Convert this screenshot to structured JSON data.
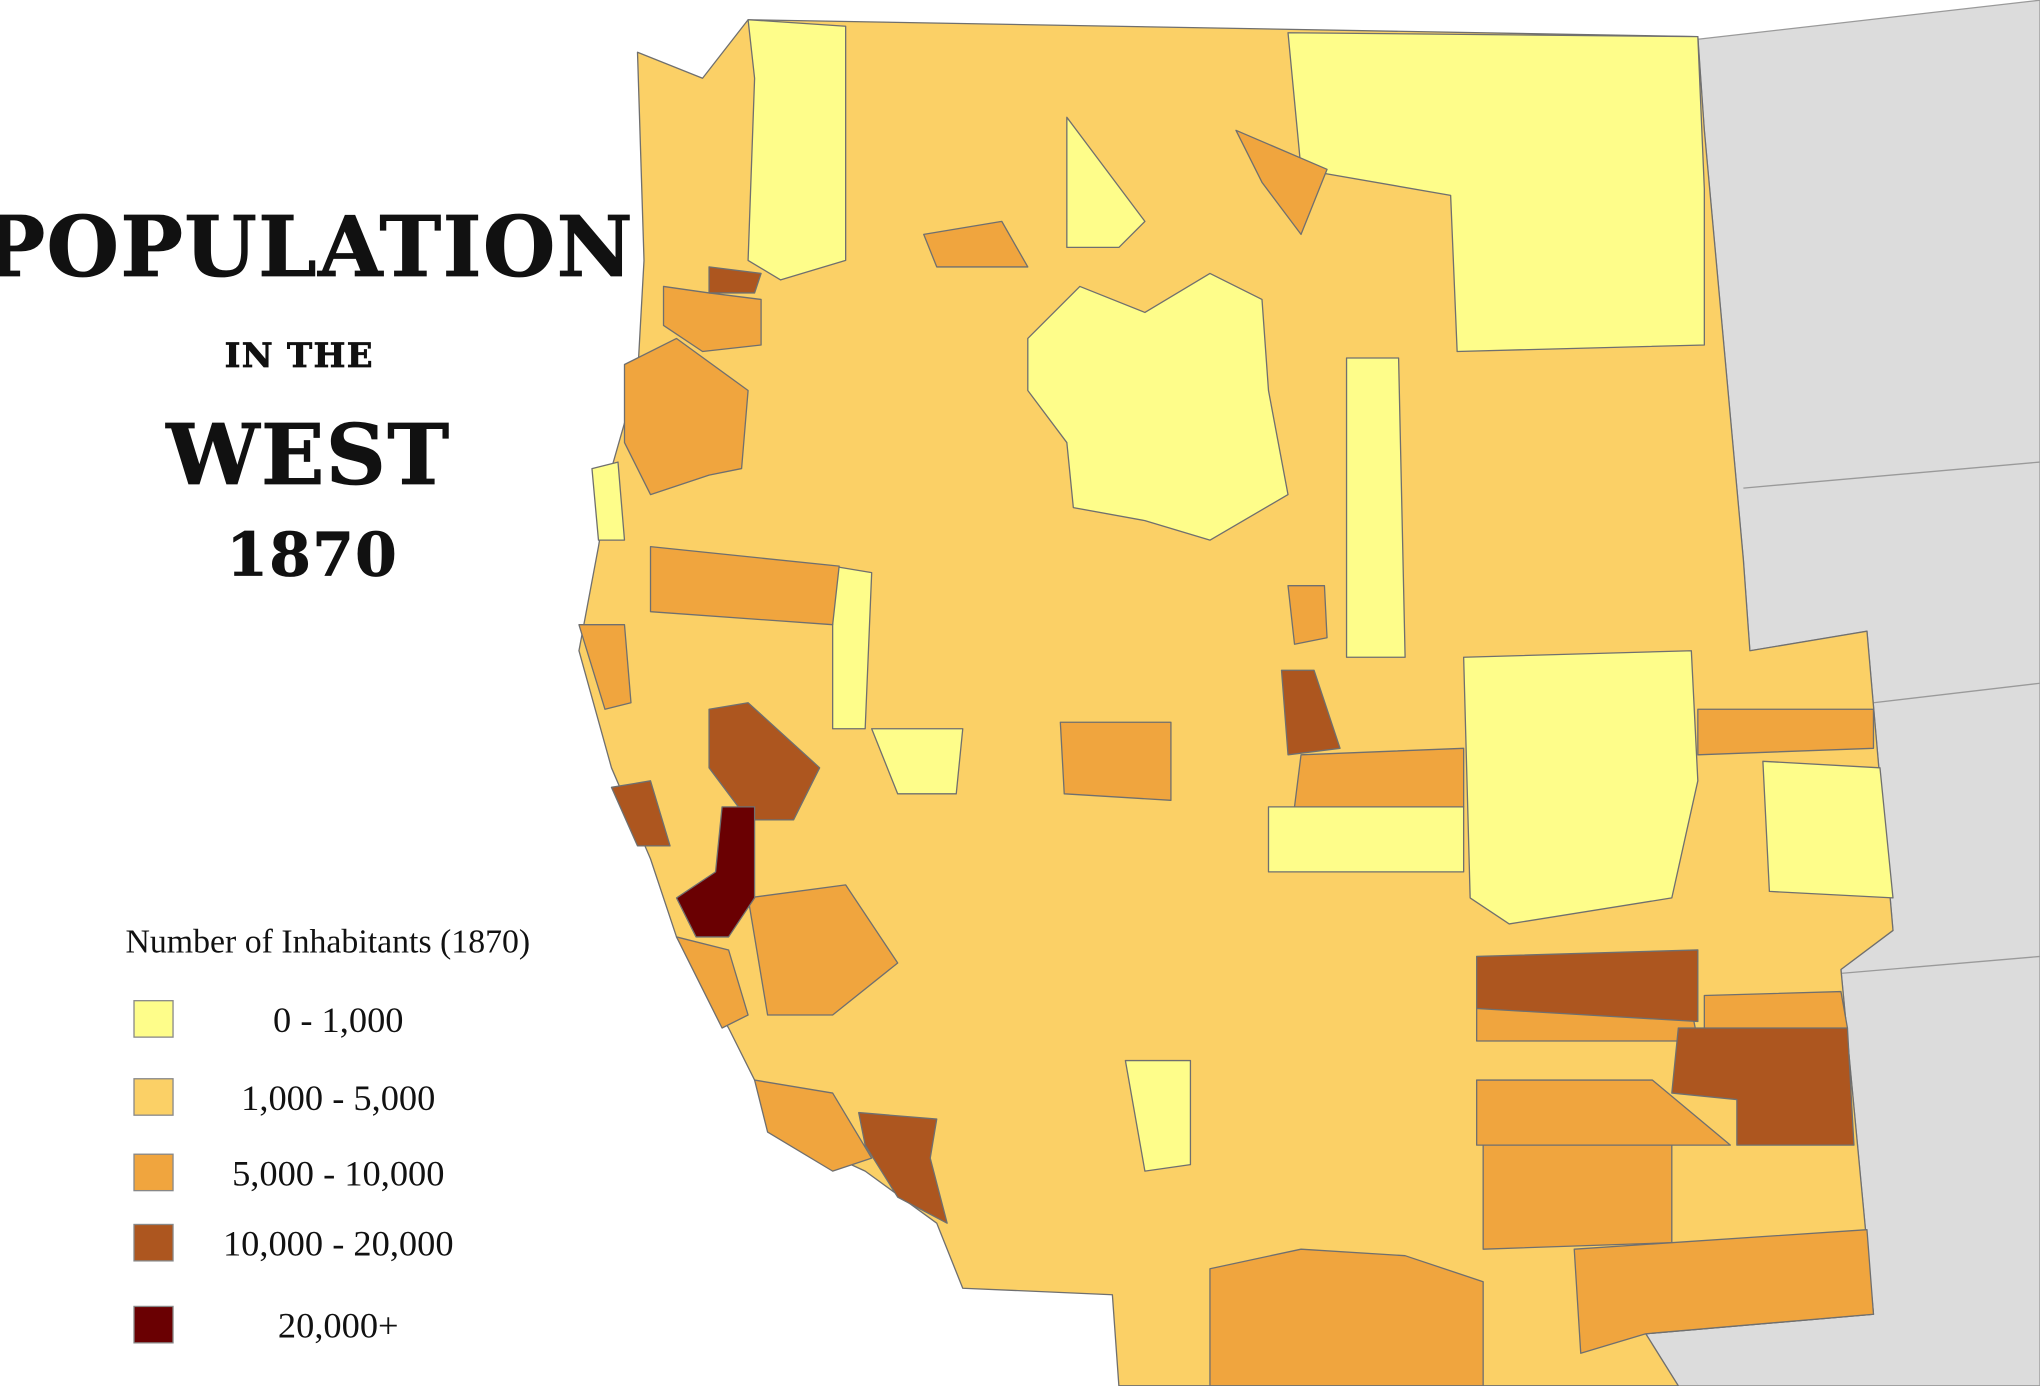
{
  "header": {
    "title_line_1": "POPULATION",
    "title_line_2": "IN THE",
    "title_line_3": "WEST",
    "title_line_4": "1870"
  },
  "legend": {
    "title": "Number of Inhabitants (1870)",
    "items": [
      {
        "label": "0 - 1,000",
        "color": "#fefd8a"
      },
      {
        "label": "1,000 - 5,000",
        "color": "#fbd066"
      },
      {
        "label": "5,000 - 10,000",
        "color": "#f0a53e"
      },
      {
        "label": "10,000 - 20,000",
        "color": "#ad561f"
      },
      {
        "label": "20,000+",
        "color": "#6a0002"
      }
    ]
  }
}
